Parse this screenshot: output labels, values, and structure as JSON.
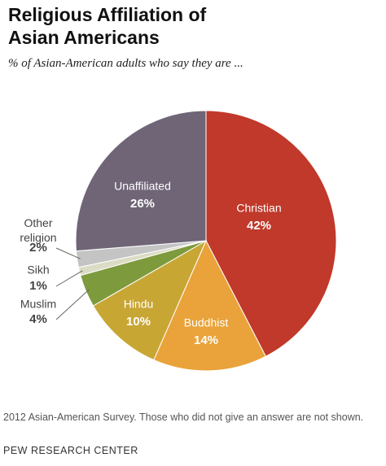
{
  "chart_data": {
    "type": "pie",
    "title": "Religious Affiliation of Asian Americans",
    "subtitle": "% of Asian-American adults who say they are ...",
    "categories": [
      "Christian",
      "Buddhist",
      "Hindu",
      "Muslim",
      "Sikh",
      "Other religion",
      "Unaffiliated"
    ],
    "values": [
      42,
      14,
      10,
      4,
      1,
      2,
      26
    ],
    "value_labels": [
      "42%",
      "14%",
      "10%",
      "4%",
      "1%",
      "2%",
      "26%"
    ],
    "colors": [
      "#c0392a",
      "#e9a33a",
      "#c8a634",
      "#7d9a3d",
      "#dcdcc6",
      "#c4c4c4",
      "#6f6577"
    ],
    "note": "2012 Asian-American Survey. Those who did not give an answer are not shown.",
    "source": "PEW RESEARCH CENTER"
  }
}
